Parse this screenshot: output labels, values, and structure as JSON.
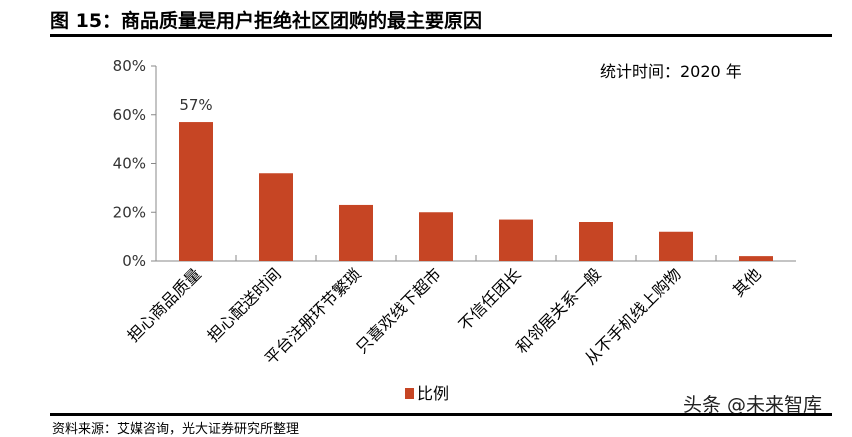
{
  "header": {
    "title": "图 15：商品质量是用户拒绝社区团购的最主要原因"
  },
  "note": "统计时间：2020 年",
  "watermark": "头条 @未来智库",
  "source": "资料来源：艾媒咨询，光大证券研究所整理",
  "chart_data": {
    "type": "bar",
    "categories": [
      "担心商品质量",
      "担心配送时间",
      "平台注册环节繁琐",
      "只喜欢线下超市",
      "不信任团长",
      "和邻居关系一般",
      "从不手机线上购物",
      "其他"
    ],
    "series": [
      {
        "name": "比例",
        "values": [
          57,
          36,
          23,
          20,
          17,
          16,
          12,
          2
        ],
        "color": "#C64524"
      }
    ],
    "data_labels": [
      {
        "index": 0,
        "text": "57%"
      }
    ],
    "ylim": [
      0,
      80
    ],
    "yticks": [
      "0%",
      "20%",
      "40%",
      "60%",
      "80%"
    ],
    "grid": false,
    "legend": "bottom"
  }
}
